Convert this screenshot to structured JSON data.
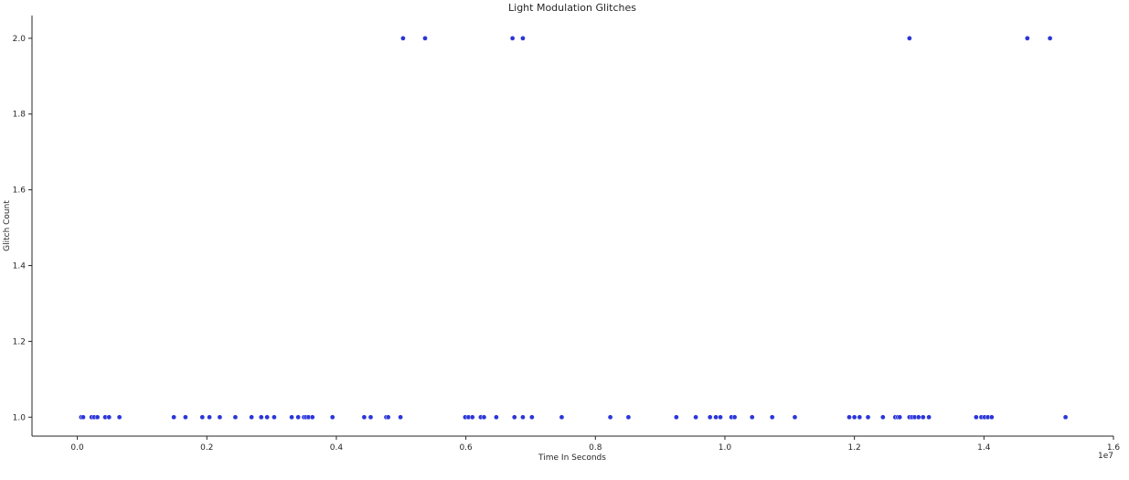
{
  "chart_data": {
    "type": "scatter",
    "title": "Light Modulation Glitches",
    "xlabel": "Time In Seconds",
    "ylabel": "Glitch Count",
    "x_offset_label": "1e7",
    "xlim": [
      -0.07,
      1.6
    ],
    "ylim": [
      0.95,
      2.06
    ],
    "x_unit_multiplier": 10000000,
    "xticks": [
      0.0,
      0.2,
      0.4,
      0.6,
      0.8,
      1.0,
      1.2,
      1.4,
      1.6
    ],
    "xtick_labels": [
      "0.0",
      "0.2",
      "0.4",
      "0.6",
      "0.8",
      "1.0",
      "1.2",
      "1.4",
      "1.6"
    ],
    "yticks": [
      1.0,
      1.2,
      1.4,
      1.6,
      1.8,
      2.0
    ],
    "ytick_labels": [
      "1.0",
      "1.2",
      "1.4",
      "1.6",
      "1.8",
      "2.0"
    ],
    "grid": false,
    "marker_color": "#2b35d9",
    "series": [
      {
        "x": [
          0.006,
          0.009,
          0.022,
          0.026,
          0.031,
          0.043,
          0.049,
          0.065,
          0.149,
          0.167,
          0.193,
          0.204,
          0.22,
          0.244,
          0.269,
          0.284,
          0.293,
          0.304,
          0.331,
          0.341,
          0.35,
          0.353,
          0.357,
          0.363,
          0.394,
          0.443,
          0.453,
          0.477,
          0.48,
          0.499,
          0.599,
          0.604,
          0.61,
          0.623,
          0.628,
          0.647,
          0.675,
          0.688,
          0.702,
          0.748,
          0.823,
          0.851,
          0.925,
          0.955,
          0.977,
          0.986,
          0.993,
          1.01,
          1.015,
          1.042,
          1.073,
          1.108,
          1.192,
          1.2,
          1.208,
          1.221,
          1.244,
          1.263,
          1.267,
          1.27,
          1.285,
          1.289,
          1.293,
          1.299,
          1.306,
          1.315,
          1.388,
          1.396,
          1.401,
          1.406,
          1.412,
          1.526,
          0.503,
          0.537,
          0.672,
          0.688,
          1.285,
          1.467,
          1.502
        ],
        "y": [
          1,
          1,
          1,
          1,
          1,
          1,
          1,
          1,
          1,
          1,
          1,
          1,
          1,
          1,
          1,
          1,
          1,
          1,
          1,
          1,
          1,
          1,
          1,
          1,
          1,
          1,
          1,
          1,
          1,
          1,
          1,
          1,
          1,
          1,
          1,
          1,
          1,
          1,
          1,
          1,
          1,
          1,
          1,
          1,
          1,
          1,
          1,
          1,
          1,
          1,
          1,
          1,
          1,
          1,
          1,
          1,
          1,
          1,
          1,
          1,
          1,
          1,
          1,
          1,
          1,
          1,
          1,
          1,
          1,
          1,
          1,
          1,
          2,
          2,
          2,
          2,
          2,
          2,
          2
        ]
      }
    ]
  }
}
